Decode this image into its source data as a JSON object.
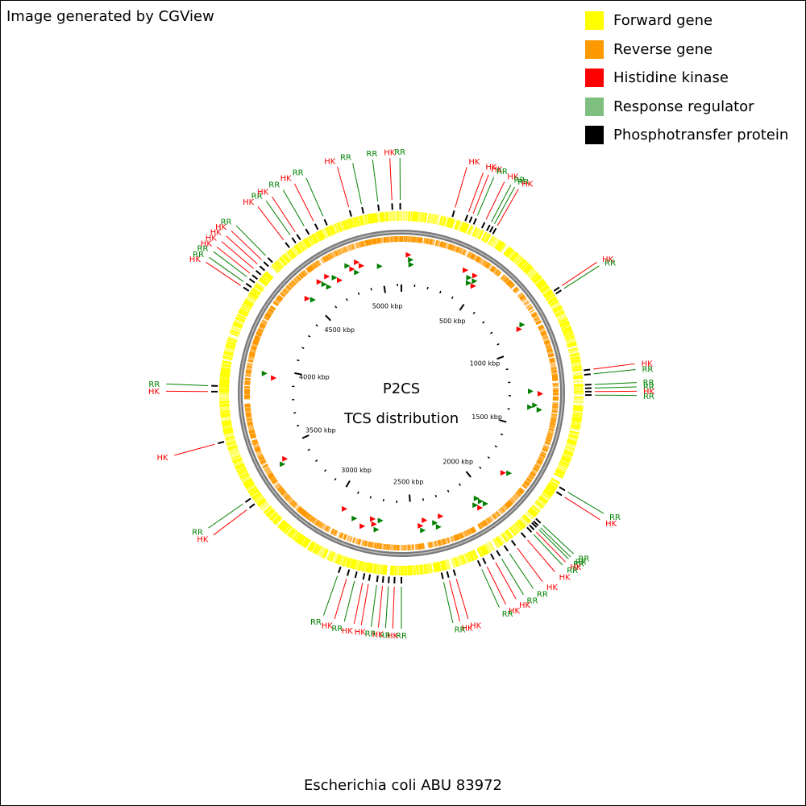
{
  "credit": "Image generated by CGView",
  "footer_title": "Escherichia coli ABU 83972",
  "center": {
    "line1": "P2CS",
    "line2": "TCS distribution"
  },
  "legend": [
    {
      "label": "Forward gene",
      "color": "#ffff00"
    },
    {
      "label": "Reverse gene",
      "color": "#ff9900"
    },
    {
      "label": "Histidine kinase",
      "color": "#ff0000"
    },
    {
      "label": "Response regulator",
      "color": "#7fbf7f"
    },
    {
      "label": "Phosphotransfer protein",
      "color": "#000000"
    }
  ],
  "genome_kbp": 5130,
  "scale_labels": [
    "500 kbp",
    "1000 kbp",
    "1500 kbp",
    "2000 kbp",
    "2500 kbp",
    "3000 kbp",
    "3500 kbp",
    "4000 kbp",
    "4500 kbp",
    "5000 kbp"
  ],
  "features": [
    {
      "label": "HK",
      "kbp": 230
    },
    {
      "label": "HK",
      "kbp": 290
    },
    {
      "label": "HK",
      "kbp": 310
    },
    {
      "label": "RR",
      "kbp": 330
    },
    {
      "label": "HK",
      "kbp": 370
    },
    {
      "label": "RR",
      "kbp": 395
    },
    {
      "label": "RR",
      "kbp": 410
    },
    {
      "label": "HK",
      "kbp": 425
    },
    {
      "label": "HK",
      "kbp": 800
    },
    {
      "label": "RR",
      "kbp": 815
    },
    {
      "label": "HK",
      "kbp": 1180
    },
    {
      "label": "RR",
      "kbp": 1200
    },
    {
      "label": "RR",
      "kbp": 1245
    },
    {
      "label": "RR",
      "kbp": 1260
    },
    {
      "label": "HK",
      "kbp": 1275
    },
    {
      "label": "RR",
      "kbp": 1290
    },
    {
      "label": "RR",
      "kbp": 1720
    },
    {
      "label": "HK",
      "kbp": 1745
    },
    {
      "label": "RR",
      "kbp": 1895
    },
    {
      "label": "RR",
      "kbp": 1910
    },
    {
      "label": "RR",
      "kbp": 1920
    },
    {
      "label": "HK",
      "kbp": 1935
    },
    {
      "label": "RR",
      "kbp": 1950
    },
    {
      "label": "HK",
      "kbp": 1985
    },
    {
      "label": "HK",
      "kbp": 2040
    },
    {
      "label": "RR",
      "kbp": 2080
    },
    {
      "label": "RR",
      "kbp": 2120
    },
    {
      "label": "HK",
      "kbp": 2150
    },
    {
      "label": "HK",
      "kbp": 2190
    },
    {
      "label": "RR",
      "kbp": 2215
    },
    {
      "label": "HK",
      "kbp": 2330
    },
    {
      "label": "HK",
      "kbp": 2360
    },
    {
      "label": "RR",
      "kbp": 2385
    },
    {
      "label": "RR",
      "kbp": 2565
    },
    {
      "label": "HK",
      "kbp": 2595
    },
    {
      "label": "RR",
      "kbp": 2620
    },
    {
      "label": "HK",
      "kbp": 2645
    },
    {
      "label": "RR",
      "kbp": 2670
    },
    {
      "label": "HK",
      "kbp": 2705
    },
    {
      "label": "HK",
      "kbp": 2730
    },
    {
      "label": "RR",
      "kbp": 2765
    },
    {
      "label": "HK",
      "kbp": 2800
    },
    {
      "label": "RR",
      "kbp": 2840
    },
    {
      "label": "HK",
      "kbp": 3320
    },
    {
      "label": "RR",
      "kbp": 3350
    },
    {
      "label": "HK",
      "kbp": 3630
    },
    {
      "label": "HK",
      "kbp": 3855
    },
    {
      "label": "RR",
      "kbp": 3880
    },
    {
      "label": "HK",
      "kbp": 4330
    },
    {
      "label": "RR",
      "kbp": 4350
    },
    {
      "label": "RR",
      "kbp": 4375
    },
    {
      "label": "HK",
      "kbp": 4395
    },
    {
      "label": "HK",
      "kbp": 4420
    },
    {
      "label": "HK",
      "kbp": 4445
    },
    {
      "label": "HK",
      "kbp": 4470
    },
    {
      "label": "RR",
      "kbp": 4495
    },
    {
      "label": "HK",
      "kbp": 4595
    },
    {
      "label": "RR",
      "kbp": 4630
    },
    {
      "label": "HK",
      "kbp": 4655
    },
    {
      "label": "RR",
      "kbp": 4700
    },
    {
      "label": "HK",
      "kbp": 4745
    },
    {
      "label": "RR",
      "kbp": 4790
    },
    {
      "label": "HK",
      "kbp": 4905
    },
    {
      "label": "RR",
      "kbp": 4960
    },
    {
      "label": "RR",
      "kbp": 5030
    },
    {
      "label": "HK",
      "kbp": 5090
    },
    {
      "label": "RR",
      "kbp": 5125
    }
  ],
  "inner_markers": [
    {
      "kbp": 40,
      "type": "HK"
    },
    {
      "kbp": 55,
      "type": "RR"
    },
    {
      "kbp": 60,
      "type": "RR"
    },
    {
      "kbp": 390,
      "type": "HK"
    },
    {
      "kbp": 430,
      "type": "RR"
    },
    {
      "kbp": 445,
      "type": "RR"
    },
    {
      "kbp": 455,
      "type": "HK"
    },
    {
      "kbp": 470,
      "type": "RR"
    },
    {
      "kbp": 480,
      "type": "HK"
    },
    {
      "kbp": 860,
      "type": "RR"
    },
    {
      "kbp": 875,
      "type": "HK"
    },
    {
      "kbp": 1270,
      "type": "RR"
    },
    {
      "kbp": 1285,
      "type": "HK"
    },
    {
      "kbp": 1355,
      "type": "RR"
    },
    {
      "kbp": 1370,
      "type": "RR"
    },
    {
      "kbp": 1380,
      "type": "RR"
    },
    {
      "kbp": 1805,
      "type": "RR"
    },
    {
      "kbp": 1825,
      "type": "HK"
    },
    {
      "kbp": 2035,
      "type": "RR"
    },
    {
      "kbp": 2050,
      "type": "RR"
    },
    {
      "kbp": 2060,
      "type": "RR"
    },
    {
      "kbp": 2075,
      "type": "HK"
    },
    {
      "kbp": 2090,
      "type": "RR"
    },
    {
      "kbp": 2315,
      "type": "HK"
    },
    {
      "kbp": 2345,
      "type": "RR"
    },
    {
      "kbp": 2360,
      "type": "RR"
    },
    {
      "kbp": 2420,
      "type": "HK"
    },
    {
      "kbp": 2440,
      "type": "RR"
    },
    {
      "kbp": 2450,
      "type": "HK"
    },
    {
      "kbp": 2700,
      "type": "RR"
    },
    {
      "kbp": 2715,
      "type": "RR"
    },
    {
      "kbp": 2735,
      "type": "HK"
    },
    {
      "kbp": 2750,
      "type": "HK"
    },
    {
      "kbp": 2800,
      "type": "HK"
    },
    {
      "kbp": 2860,
      "type": "RR"
    },
    {
      "kbp": 2940,
      "type": "HK"
    },
    {
      "kbp": 3410,
      "type": "RR"
    },
    {
      "kbp": 3430,
      "type": "HK"
    },
    {
      "kbp": 3945,
      "type": "HK"
    },
    {
      "kbp": 3965,
      "type": "RR"
    },
    {
      "kbp": 4490,
      "type": "HK"
    },
    {
      "kbp": 4510,
      "type": "RR"
    },
    {
      "kbp": 4610,
      "type": "HK"
    },
    {
      "kbp": 4625,
      "type": "RR"
    },
    {
      "kbp": 4640,
      "type": "RR"
    },
    {
      "kbp": 4665,
      "type": "HK"
    },
    {
      "kbp": 4700,
      "type": "RR"
    },
    {
      "kbp": 4720,
      "type": "HK"
    },
    {
      "kbp": 4800,
      "type": "RR"
    },
    {
      "kbp": 4820,
      "type": "HK"
    },
    {
      "kbp": 4840,
      "type": "RR"
    },
    {
      "kbp": 4860,
      "type": "HK"
    },
    {
      "kbp": 4880,
      "type": "HK"
    },
    {
      "kbp": 4990,
      "type": "RR"
    }
  ],
  "colors": {
    "hk": "#ff0000",
    "rr": "#008000",
    "backbone_outer": "#7a7a7a",
    "backbone_inner": "#bdbdbd"
  }
}
